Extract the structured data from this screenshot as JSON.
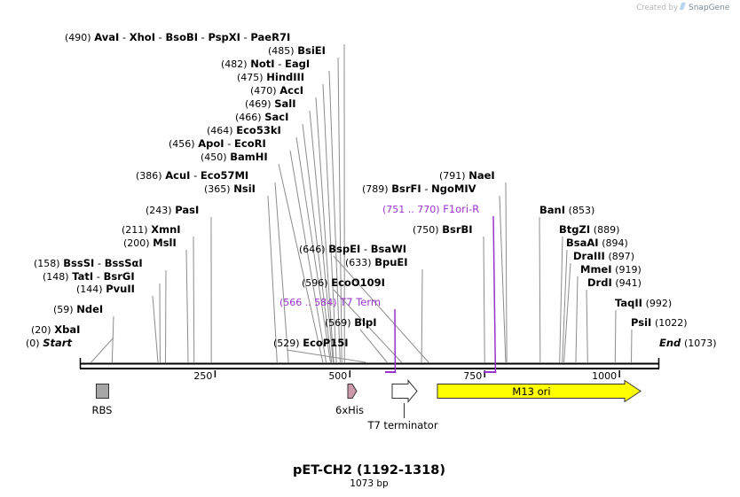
{
  "watermark": {
    "prefix": "Created by",
    "brand": "SnapGene"
  },
  "title": {
    "name": "pET-CH2 (1192-1318)",
    "length": "1073 bp"
  },
  "ruler": {
    "start": 0,
    "end": 1073,
    "ticks": [
      {
        "bp": 250,
        "label": "250"
      },
      {
        "bp": 500,
        "label": "500"
      },
      {
        "bp": 750,
        "label": "750"
      },
      {
        "bp": 1000,
        "label": "1000"
      }
    ]
  },
  "colors": {
    "line": "#000000",
    "leader": "#8c8c8c",
    "primer": "#9933cc",
    "rbs": "#a6a6a6",
    "his": "#cc99aa",
    "terminator": "#ffffff",
    "m13": "#ffff00"
  },
  "features": [
    {
      "id": "rbs",
      "label": "RBS",
      "start": 29,
      "end": 51,
      "shape": "box"
    },
    {
      "id": "his",
      "label": "6xHis",
      "start": 503,
      "end": 521,
      "shape": "arrow"
    },
    {
      "id": "t7term",
      "label": "T7 terminator",
      "start": 583,
      "end": 630,
      "shape": "arrow"
    },
    {
      "id": "m13",
      "label": "M13 ori",
      "start": 665,
      "end": 1045,
      "shape": "arrow"
    }
  ],
  "primers": [
    {
      "label": "T7 Term",
      "range": "(566 .. 584)",
      "site": 584
    },
    {
      "label": "F1ori-R",
      "range": "(751 .. 770)",
      "site": 770
    }
  ],
  "ends": [
    {
      "label": "Start",
      "pos": "(0)"
    },
    {
      "label": "End",
      "pos": "(1073)"
    }
  ],
  "left_sites": [
    {
      "pos": "(20)",
      "names": [
        "XbaI"
      ],
      "sites": [
        20
      ]
    },
    {
      "pos": "(59)",
      "names": [
        "NdeI"
      ],
      "sites": [
        59
      ]
    },
    {
      "pos": "(144)",
      "names": [
        "PvuII"
      ],
      "sites": [
        144
      ]
    },
    {
      "pos": "(148)",
      "names": [
        "TatI",
        "BsrGI"
      ],
      "sites": [
        148
      ]
    },
    {
      "pos": "(158)",
      "names": [
        "BssSI",
        "BssSαI"
      ],
      "sites": [
        158
      ]
    },
    {
      "pos": "(200)",
      "names": [
        "MslI"
      ],
      "sites": [
        200
      ]
    },
    {
      "pos": "(211)",
      "names": [
        "XmnI"
      ],
      "sites": [
        211
      ]
    },
    {
      "pos": "(243)",
      "names": [
        "PasI"
      ],
      "sites": [
        243
      ]
    },
    {
      "pos": "(365)",
      "names": [
        "NsiI"
      ],
      "sites": [
        365
      ]
    },
    {
      "pos": "(386)",
      "names": [
        "AcuI",
        "Eco57MI"
      ],
      "sites": [
        386
      ]
    },
    {
      "pos": "(450)",
      "names": [
        "BamHI"
      ],
      "sites": [
        450
      ]
    },
    {
      "pos": "(456)",
      "names": [
        "ApoI",
        "EcoRI"
      ],
      "sites": [
        456
      ]
    },
    {
      "pos": "(464)",
      "names": [
        "Eco53kI"
      ],
      "sites": [
        464
      ]
    },
    {
      "pos": "(466)",
      "names": [
        "SacI"
      ],
      "sites": [
        466
      ]
    },
    {
      "pos": "(469)",
      "names": [
        "SalI"
      ],
      "sites": [
        469
      ]
    },
    {
      "pos": "(470)",
      "names": [
        "AccI"
      ],
      "sites": [
        470
      ]
    },
    {
      "pos": "(475)",
      "names": [
        "HindIII"
      ],
      "sites": [
        475
      ]
    },
    {
      "pos": "(482)",
      "names": [
        "NotI",
        "EagI"
      ],
      "sites": [
        482
      ]
    },
    {
      "pos": "(485)",
      "names": [
        "BsiEI"
      ],
      "sites": [
        485
      ]
    },
    {
      "pos": "(490)",
      "names": [
        "AvaI",
        "XhoI",
        "BsoBI",
        "PspXI",
        "PaeR7I"
      ],
      "sites": [
        490
      ]
    }
  ],
  "center_sites": [
    {
      "pos": "(529)",
      "names": [
        "EcoP15I"
      ],
      "sites": [
        529
      ]
    },
    {
      "pos": "(569)",
      "names": [
        "BlpI"
      ],
      "sites": [
        569
      ]
    },
    {
      "pos": "(596)",
      "names": [
        "EcoO109I"
      ],
      "sites": [
        596
      ]
    },
    {
      "pos": "(633)",
      "names": [
        "BpuEI"
      ],
      "sites": [
        633
      ]
    },
    {
      "pos": "(646)",
      "names": [
        "BspEI",
        "BsaWI"
      ],
      "sites": [
        646
      ]
    },
    {
      "pos": "(750)",
      "names": [
        "BsrBI"
      ],
      "sites": [
        750
      ]
    },
    {
      "pos": "(789)",
      "names": [
        "BsrFI",
        "NgoMIV"
      ],
      "sites": [
        789
      ]
    },
    {
      "pos": "(791)",
      "names": [
        "NaeI"
      ],
      "sites": [
        791
      ]
    }
  ],
  "right_sites": [
    {
      "pos": "(853)",
      "names": [
        "BanI"
      ],
      "sites": [
        853
      ]
    },
    {
      "pos": "(889)",
      "names": [
        "BtgZI"
      ],
      "sites": [
        889
      ]
    },
    {
      "pos": "(894)",
      "names": [
        "BsaAI"
      ],
      "sites": [
        894
      ]
    },
    {
      "pos": "(897)",
      "names": [
        "DraIII"
      ],
      "sites": [
        897
      ]
    },
    {
      "pos": "(919)",
      "names": [
        "MmeI"
      ],
      "sites": [
        919
      ]
    },
    {
      "pos": "(941)",
      "names": [
        "DrdI"
      ],
      "sites": [
        941
      ]
    },
    {
      "pos": "(992)",
      "names": [
        "TaqII"
      ],
      "sites": [
        992
      ]
    },
    {
      "pos": "(1022)",
      "names": [
        "PsiI"
      ],
      "sites": [
        1022
      ]
    }
  ]
}
